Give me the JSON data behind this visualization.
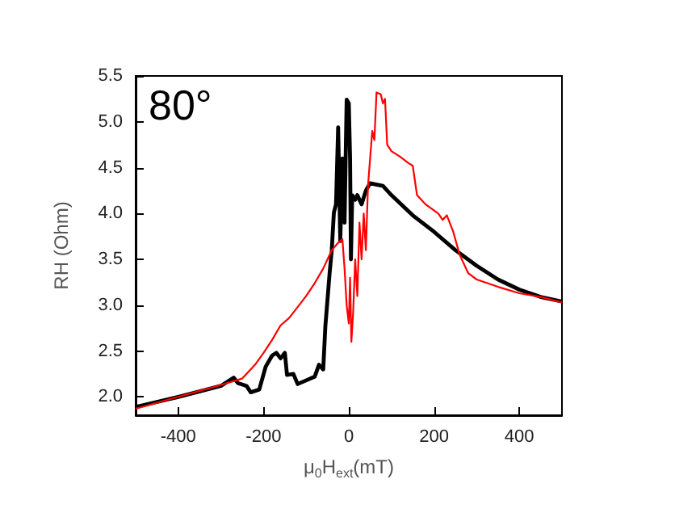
{
  "chart_data": {
    "type": "line",
    "xlabel": "μ$_{0}$H$_{ext}$(mT)",
    "ylabel": "RH (Ohm)",
    "annotations": [
      "80°"
    ],
    "xlim": [
      -500,
      500
    ],
    "xticks": [
      -400,
      -200,
      0,
      200,
      400
    ],
    "ylim": [
      1.8,
      5.5
    ],
    "yticks": [
      {
        "value": 2,
        "label": "2.0"
      },
      2.5,
      {
        "value": 3,
        "label": "3.0"
      },
      3.5,
      {
        "value": 4,
        "label": "4.0"
      },
      4.5,
      {
        "value": 5,
        "label": "5.0"
      },
      5.5
    ],
    "grid": false,
    "marker": "none",
    "line_style": "solid",
    "series": [
      {
        "color": "#000000",
        "x": [
          -500,
          -400,
          -300,
          -270,
          -260,
          -240,
          -230,
          -210,
          -195,
          -180,
          -170,
          -160,
          -150,
          -145,
          -130,
          -120,
          -100,
          -80,
          -70,
          -60,
          -55,
          -45,
          -40,
          -35,
          -30,
          -25,
          -20,
          -15,
          -10,
          -5,
          0,
          3,
          5,
          8,
          15,
          20,
          30,
          40,
          50,
          80,
          100,
          150,
          200,
          250,
          300,
          350,
          400,
          450,
          500
        ],
        "values": [
          1.89,
          2.0,
          2.12,
          2.21,
          2.15,
          2.12,
          2.05,
          2.08,
          2.33,
          2.45,
          2.48,
          2.42,
          2.48,
          2.24,
          2.25,
          2.14,
          2.18,
          2.22,
          2.35,
          2.3,
          2.77,
          3.35,
          3.6,
          4.01,
          4.1,
          4.94,
          3.7,
          4.6,
          3.9,
          5.24,
          5.2,
          4.6,
          3.5,
          4.2,
          4.15,
          4.2,
          4.1,
          4.25,
          4.33,
          4.3,
          4.2,
          3.98,
          3.8,
          3.6,
          3.43,
          3.28,
          3.17,
          3.09,
          3.04
        ]
      },
      {
        "color": "#ff0000",
        "x": [
          -500,
          -400,
          -300,
          -250,
          -220,
          -200,
          -180,
          -160,
          -140,
          -120,
          -100,
          -80,
          -60,
          -40,
          -25,
          -15,
          -10,
          -5,
          0,
          3,
          6,
          10,
          15,
          20,
          25,
          30,
          35,
          40,
          45,
          55,
          60,
          65,
          75,
          80,
          85,
          90,
          100,
          120,
          140,
          150,
          160,
          180,
          210,
          220,
          230,
          245,
          260,
          280,
          300,
          350,
          400,
          450,
          500
        ],
        "values": [
          1.87,
          2.0,
          2.13,
          2.2,
          2.35,
          2.48,
          2.62,
          2.78,
          2.86,
          2.98,
          3.1,
          3.24,
          3.4,
          3.6,
          3.68,
          3.72,
          3.4,
          3.0,
          2.8,
          3.3,
          2.6,
          2.9,
          3.5,
          3.1,
          3.9,
          3.5,
          4.0,
          3.6,
          4.3,
          4.9,
          4.8,
          5.32,
          5.3,
          5.2,
          5.25,
          4.75,
          4.68,
          4.62,
          4.55,
          4.52,
          4.2,
          4.1,
          4.0,
          3.93,
          3.98,
          3.8,
          3.55,
          3.35,
          3.28,
          3.2,
          3.13,
          3.09,
          3.03
        ]
      }
    ]
  }
}
